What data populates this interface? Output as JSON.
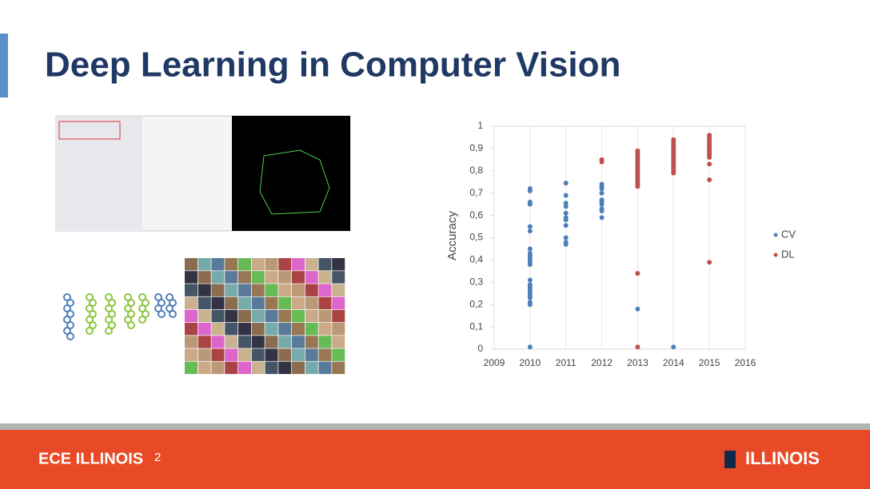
{
  "slide": {
    "title": "Deep Learning in Computer Vision",
    "footer_left": "ECE ILLINOIS",
    "page_number": "2",
    "footer_right": "ILLINOIS"
  },
  "chart_data": {
    "type": "scatter",
    "y_label": "Accuracy",
    "grid": "x",
    "legend": "right",
    "xlim": [
      2009,
      2016
    ],
    "xticks": [
      2009,
      2010,
      2011,
      2012,
      2013,
      2014,
      2015,
      2016
    ],
    "ylim": [
      0,
      1
    ],
    "yticks": [
      0,
      {
        "value": 0.1,
        "label": "0,1"
      },
      {
        "value": 0.2,
        "label": "0,2"
      },
      {
        "value": 0.3,
        "label": "0,3"
      },
      {
        "value": 0.4,
        "label": "0,4"
      },
      {
        "value": 0.5,
        "label": "0,5"
      },
      {
        "value": 0.6,
        "label": "0,6"
      },
      {
        "value": 0.7,
        "label": "0,7"
      },
      {
        "value": 0.8,
        "label": "0,8"
      },
      {
        "value": 0.9,
        "label": "0,9"
      },
      1
    ],
    "series": [
      {
        "name": "CV",
        "color": "#4f7fb8",
        "x": [
          2010,
          2010,
          2010,
          2010,
          2010,
          2010,
          2010,
          2010,
          2010,
          2010,
          2010,
          2010,
          2010,
          2010,
          2010,
          2010,
          2010,
          2010,
          2010,
          2010,
          2010,
          2010,
          2010,
          2010,
          2011,
          2011,
          2011,
          2011,
          2011,
          2011,
          2011,
          2011,
          2011,
          2011,
          2011,
          2012,
          2012,
          2012,
          2012,
          2012,
          2012,
          2012,
          2012,
          2012,
          2012,
          2013,
          2014
        ],
        "values": [
          0.72,
          0.71,
          0.66,
          0.65,
          0.55,
          0.53,
          0.45,
          0.43,
          0.42,
          0.41,
          0.4,
          0.39,
          0.38,
          0.31,
          0.29,
          0.28,
          0.27,
          0.26,
          0.25,
          0.24,
          0.23,
          0.21,
          0.2,
          0.01,
          0.745,
          0.69,
          0.655,
          0.64,
          0.61,
          0.59,
          0.58,
          0.555,
          0.5,
          0.48,
          0.47,
          0.74,
          0.73,
          0.72,
          0.7,
          0.67,
          0.66,
          0.65,
          0.63,
          0.62,
          0.59,
          0.18,
          0.01
        ]
      },
      {
        "name": "DL",
        "color": "#c0504d",
        "x": [
          2012,
          2012,
          2013,
          2013,
          2013,
          2013,
          2013,
          2013,
          2013,
          2013,
          2013,
          2013,
          2013,
          2013,
          2013,
          2013,
          2013,
          2013,
          2013,
          2013,
          2013,
          2014,
          2014,
          2014,
          2014,
          2014,
          2014,
          2014,
          2014,
          2014,
          2014,
          2014,
          2014,
          2014,
          2014,
          2014,
          2014,
          2015,
          2015,
          2015,
          2015,
          2015,
          2015,
          2015,
          2015,
          2015,
          2015,
          2015,
          2015,
          2015,
          2015
        ],
        "values": [
          0.85,
          0.84,
          0.89,
          0.88,
          0.87,
          0.86,
          0.85,
          0.84,
          0.83,
          0.82,
          0.81,
          0.8,
          0.79,
          0.78,
          0.77,
          0.76,
          0.75,
          0.74,
          0.73,
          0.34,
          0.01,
          0.94,
          0.93,
          0.92,
          0.91,
          0.9,
          0.89,
          0.88,
          0.87,
          0.86,
          0.85,
          0.84,
          0.83,
          0.82,
          0.81,
          0.8,
          0.79,
          0.96,
          0.95,
          0.94,
          0.93,
          0.92,
          0.91,
          0.9,
          0.89,
          0.88,
          0.87,
          0.86,
          0.83,
          0.76,
          0.39
        ]
      }
    ]
  }
}
